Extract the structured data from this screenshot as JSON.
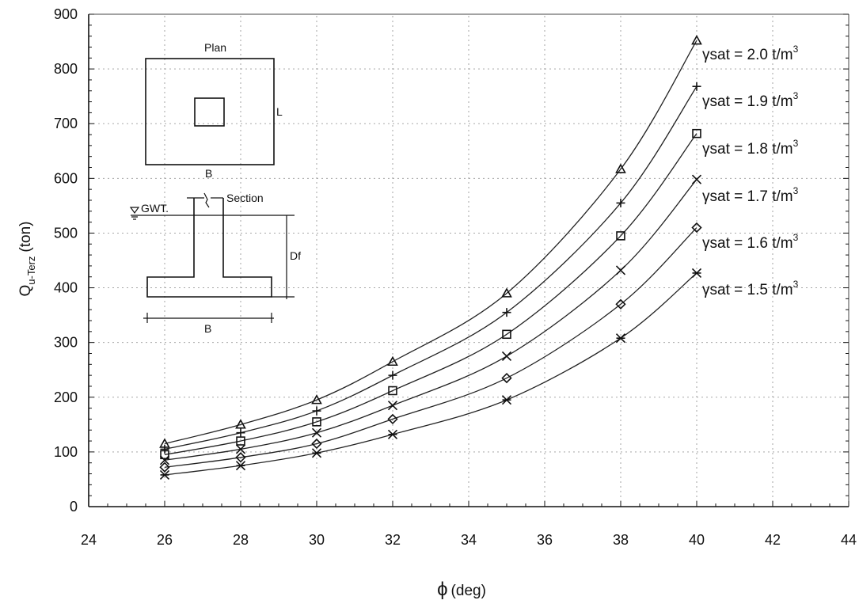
{
  "chart_data": {
    "type": "line",
    "xlabel_symbol": "ϕ",
    "xlabel_text": "(deg)",
    "ylabel_main": "Q",
    "ylabel_sub": "u-Terz",
    "ylabel_unit": "(ton)",
    "xlim": [
      24,
      44
    ],
    "ylim": [
      0,
      900
    ],
    "xticks": [
      "24",
      "26",
      "28",
      "30",
      "32",
      "34",
      "36",
      "38",
      "40",
      "42",
      "44"
    ],
    "yticks": [
      "0",
      "100",
      "200",
      "300",
      "400",
      "500",
      "600",
      "700",
      "800",
      "900"
    ],
    "grid": true,
    "legend_placement": "right",
    "x": [
      26,
      28,
      30,
      32,
      35,
      38,
      40
    ],
    "series": [
      {
        "name_pre": "γsat = 2.0 t/m",
        "name_sup": "3",
        "marker": "triangle",
        "values": [
          115,
          150,
          195,
          265,
          390,
          617,
          852
        ]
      },
      {
        "name_pre": "γsat = 1.9 t/m",
        "name_sup": "3",
        "marker": "plus",
        "values": [
          105,
          135,
          175,
          240,
          355,
          555,
          768
        ]
      },
      {
        "name_pre": "γsat = 1.8 t/m",
        "name_sup": "3",
        "marker": "square",
        "values": [
          95,
          120,
          155,
          212,
          315,
          495,
          682
        ]
      },
      {
        "name_pre": "γsat = 1.7 t/m",
        "name_sup": "3",
        "marker": "x",
        "values": [
          85,
          105,
          135,
          185,
          275,
          432,
          598
        ]
      },
      {
        "name_pre": "γsat = 1.6 t/m",
        "name_sup": "3",
        "marker": "diamond",
        "values": [
          72,
          90,
          115,
          160,
          235,
          370,
          510
        ]
      },
      {
        "name_pre": "γsat = 1.5 t/m",
        "name_sup": "3",
        "marker": "asterisk",
        "values": [
          58,
          75,
          98,
          132,
          195,
          308,
          427
        ]
      }
    ],
    "inset": {
      "plan_label": "Plan",
      "length_label": "L",
      "plan_width_label": "B",
      "section_label": "Section",
      "water_label": "GWT.",
      "depth_label": "Df",
      "section_width_label": "B"
    }
  }
}
